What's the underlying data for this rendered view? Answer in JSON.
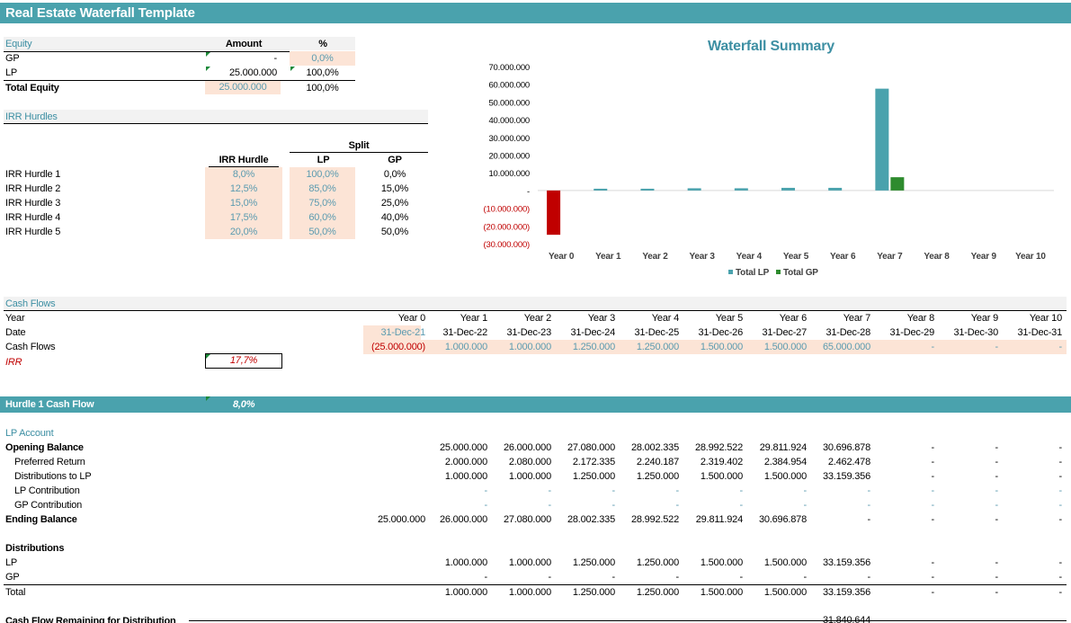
{
  "title": "Real Estate Waterfall Template",
  "equity": {
    "header": "Equity",
    "col_amount": "Amount",
    "col_pct": "%",
    "rows": [
      {
        "label": "GP",
        "amount": "-",
        "pct": "0,0%"
      },
      {
        "label": "LP",
        "amount": "25.000.000",
        "pct": "100,0%"
      },
      {
        "label": "Total Equity",
        "amount": "25.000.000",
        "pct": "100,0%"
      }
    ]
  },
  "irr": {
    "header": "IRR Hurdles",
    "split_label": "Split",
    "col_hurdle": "IRR Hurdle",
    "col_lp": "LP",
    "col_gp": "GP",
    "rows": [
      {
        "label": "IRR Hurdle 1",
        "hurdle": "8,0%",
        "lp": "100,0%",
        "gp": "0,0%"
      },
      {
        "label": "IRR Hurdle 2",
        "hurdle": "12,5%",
        "lp": "85,0%",
        "gp": "15,0%"
      },
      {
        "label": "IRR Hurdle 3",
        "hurdle": "15,0%",
        "lp": "75,0%",
        "gp": "25,0%"
      },
      {
        "label": "IRR Hurdle 4",
        "hurdle": "17,5%",
        "lp": "60,0%",
        "gp": "40,0%"
      },
      {
        "label": "IRR Hurdle 5",
        "hurdle": "20,0%",
        "lp": "50,0%",
        "gp": "50,0%"
      }
    ]
  },
  "cashflows": {
    "header": "Cash Flows",
    "row_year": "Year",
    "row_date": "Date",
    "row_cf": "Cash Flows",
    "row_irr": "IRR",
    "irr_value": "17,7%",
    "years": [
      "Year 0",
      "Year 1",
      "Year 2",
      "Year 3",
      "Year 4",
      "Year 5",
      "Year 6",
      "Year 7",
      "Year 8",
      "Year 9",
      "Year 10"
    ],
    "dates": [
      "31-Dec-21",
      "31-Dec-22",
      "31-Dec-23",
      "31-Dec-24",
      "31-Dec-25",
      "31-Dec-26",
      "31-Dec-27",
      "31-Dec-28",
      "31-Dec-29",
      "31-Dec-30",
      "31-Dec-31"
    ],
    "values": [
      "(25.000.000)",
      "1.000.000",
      "1.000.000",
      "1.250.000",
      "1.250.000",
      "1.500.000",
      "1.500.000",
      "65.000.000",
      "-",
      "-",
      "-"
    ]
  },
  "hurdle1": {
    "header": "Hurdle 1 Cash Flow",
    "rate": "8,0%",
    "lp_account": "LP Account",
    "rows": [
      {
        "label": "Opening Balance",
        "bold": true,
        "indent": false,
        "values": [
          "",
          "25.000.000",
          "26.000.000",
          "27.080.000",
          "28.002.335",
          "28.992.522",
          "29.811.924",
          "30.696.878",
          "-",
          "-",
          "-"
        ]
      },
      {
        "label": "Preferred Return",
        "bold": false,
        "indent": true,
        "values": [
          "",
          "2.000.000",
          "2.080.000",
          "2.172.335",
          "2.240.187",
          "2.319.402",
          "2.384.954",
          "2.462.478",
          "-",
          "-",
          "-"
        ]
      },
      {
        "label": "Distributions to LP",
        "bold": false,
        "indent": true,
        "values": [
          "",
          "1.000.000",
          "1.000.000",
          "1.250.000",
          "1.250.000",
          "1.500.000",
          "1.500.000",
          "33.159.356",
          "-",
          "-",
          "-"
        ]
      },
      {
        "label": "LP Contribution",
        "bold": false,
        "indent": true,
        "blue": true,
        "values": [
          "",
          "-",
          "-",
          "-",
          "-",
          "-",
          "-",
          "-",
          "-",
          "-",
          "-"
        ]
      },
      {
        "label": "GP Contribution",
        "bold": false,
        "indent": true,
        "blue": true,
        "values": [
          "",
          "-",
          "-",
          "-",
          "-",
          "-",
          "-",
          "-",
          "-",
          "-",
          "-"
        ]
      },
      {
        "label": "Ending Balance",
        "bold": true,
        "indent": false,
        "values": [
          "25.000.000",
          "26.000.000",
          "27.080.000",
          "28.002.335",
          "28.992.522",
          "29.811.924",
          "30.696.878",
          "-",
          "-",
          "-",
          "-"
        ]
      }
    ],
    "distributions_label": "Distributions",
    "dist_rows": [
      {
        "label": "LP",
        "values": [
          "",
          "1.000.000",
          "1.000.000",
          "1.250.000",
          "1.250.000",
          "1.500.000",
          "1.500.000",
          "33.159.356",
          "-",
          "-",
          "-"
        ]
      },
      {
        "label": "GP",
        "values": [
          "",
          "-",
          "-",
          "-",
          "-",
          "-",
          "-",
          "-",
          "-",
          "-",
          "-"
        ]
      },
      {
        "label": "Total",
        "values": [
          "",
          "1.000.000",
          "1.000.000",
          "1.250.000",
          "1.250.000",
          "1.500.000",
          "1.500.000",
          "33.159.356",
          "-",
          "-",
          "-"
        ]
      }
    ],
    "remaining_label": "Cash Flow Remaining for Distribution",
    "remaining_y7": "31.840.644"
  },
  "chart_data": {
    "type": "bar",
    "title": "Waterfall Summary",
    "categories": [
      "Year 0",
      "Year 1",
      "Year 2",
      "Year 3",
      "Year 4",
      "Year 5",
      "Year 6",
      "Year 7",
      "Year 8",
      "Year 9",
      "Year 10"
    ],
    "series": [
      {
        "name": "Total LP",
        "color": "#4aa2ad",
        "values": [
          -25000000,
          1000000,
          1000000,
          1250000,
          1250000,
          1500000,
          1500000,
          57500000,
          0,
          0,
          0
        ]
      },
      {
        "name": "Total GP",
        "color": "#2e8b2e",
        "values": [
          0,
          0,
          0,
          0,
          0,
          0,
          0,
          7500000,
          0,
          0,
          0
        ]
      }
    ],
    "negative_color": "#c00000",
    "ylim": [
      -30000000,
      70000000
    ],
    "yticks": [
      {
        "v": 70000000,
        "label": "70.000.000"
      },
      {
        "v": 60000000,
        "label": "60.000.000"
      },
      {
        "v": 50000000,
        "label": "50.000.000"
      },
      {
        "v": 40000000,
        "label": "40.000.000"
      },
      {
        "v": 30000000,
        "label": "30.000.000"
      },
      {
        "v": 20000000,
        "label": "20.000.000"
      },
      {
        "v": 10000000,
        "label": "10.000.000"
      },
      {
        "v": 0,
        "label": "-"
      },
      {
        "v": -10000000,
        "label": "(10.000.000)"
      },
      {
        "v": -20000000,
        "label": "(20.000.000)"
      },
      {
        "v": -30000000,
        "label": "(30.000.000)"
      }
    ],
    "legend": "bottom"
  }
}
